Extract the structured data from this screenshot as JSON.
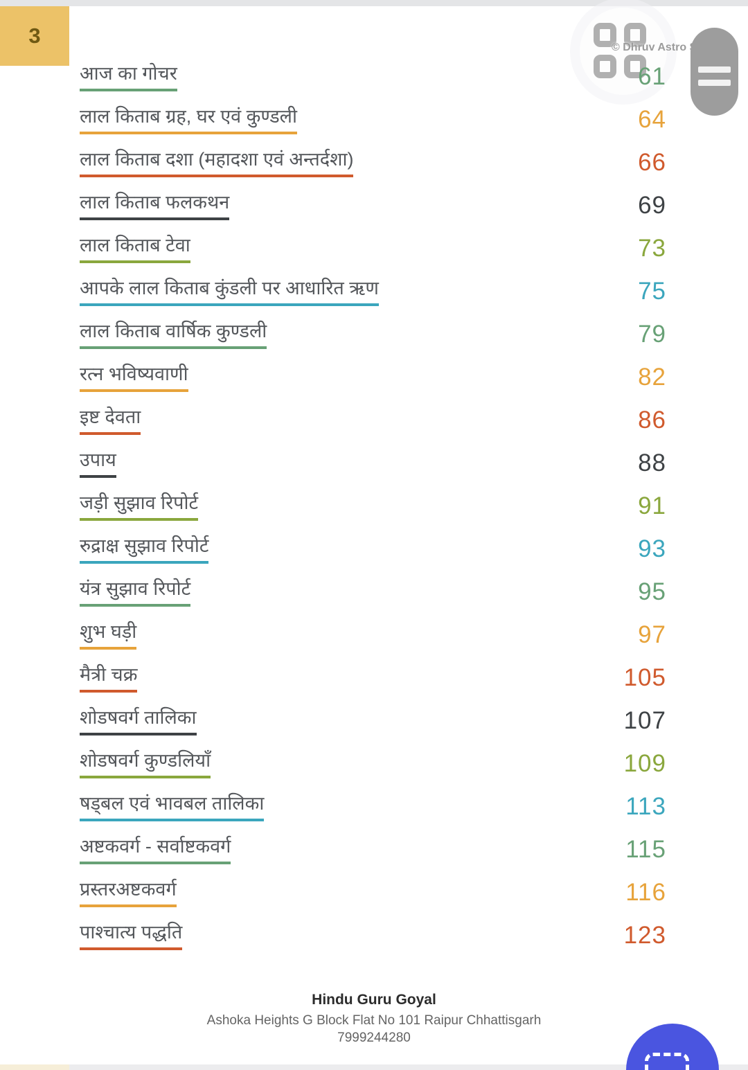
{
  "badge": {
    "number": "3"
  },
  "watermark": {
    "text": "© Dhruv Astro Software",
    "icon": "grid-icon"
  },
  "toc": {
    "items": [
      {
        "label": "आज का गोचर",
        "page": "61",
        "color": "#68a176"
      },
      {
        "label": "लाल किताब ग्रह, घर एवं कुण्डली",
        "page": "64",
        "color": "#e7a33b"
      },
      {
        "label": "लाल किताब दशा (महादशा एवं अन्तर्दशा)",
        "page": "66",
        "color": "#d05a2d"
      },
      {
        "label": "लाल किताब फलकथन",
        "page": "69",
        "color": "#3e4245"
      },
      {
        "label": "लाल किताब टेवा",
        "page": "73",
        "color": "#8aa73d"
      },
      {
        "label": "आपके लाल किताब कुंडली पर आधारित ऋण",
        "page": "75",
        "color": "#3ba6bd"
      },
      {
        "label": "लाल किताब वार्षिक कुण्डली",
        "page": "79",
        "color": "#68a176"
      },
      {
        "label": "रत्न भविष्यवाणी",
        "page": "82",
        "color": "#e7a33b"
      },
      {
        "label": "इष्ट देवता",
        "page": "86",
        "color": "#d05a2d"
      },
      {
        "label": "उपाय",
        "page": "88",
        "color": "#3e4245"
      },
      {
        "label": "जड़ी सुझाव रिपोर्ट",
        "page": "91",
        "color": "#8aa73d"
      },
      {
        "label": "रुद्राक्ष सुझाव रिपोर्ट",
        "page": "93",
        "color": "#3ba6bd"
      },
      {
        "label": "यंत्र सुझाव रिपोर्ट",
        "page": "95",
        "color": "#68a176"
      },
      {
        "label": "शुभ घड़ी",
        "page": "97",
        "color": "#e7a33b"
      },
      {
        "label": "मैत्री चक्र",
        "page": "105",
        "color": "#d05a2d"
      },
      {
        "label": "शोडषवर्ग तालिका",
        "page": "107",
        "color": "#3e4245"
      },
      {
        "label": "शोडषवर्ग कुण्डलियाँ",
        "page": "109",
        "color": "#8aa73d"
      },
      {
        "label": "षड्बल एवं भावबल तालिका",
        "page": "113",
        "color": "#3ba6bd"
      },
      {
        "label": "अष्टकवर्ग - सर्वाष्टकवर्ग",
        "page": "115",
        "color": "#68a176"
      },
      {
        "label": "प्रस्तरअष्टकवर्ग",
        "page": "116",
        "color": "#e7a33b"
      },
      {
        "label": "पाश्चात्य पद्धति",
        "page": "123",
        "color": "#d05a2d"
      }
    ]
  },
  "footer": {
    "name": "Hindu Guru Goyal",
    "address": "Ashoka Heights G Block Flat No 101 Raipur Chhattisgarh",
    "phone": "7999244280"
  },
  "colors": {
    "badge_bg": "#ecc268",
    "badge_text": "#6f5913",
    "sage_green": "#68a176",
    "amber": "#e7a33b",
    "orange_red": "#d05a2d",
    "dark": "#3e4245",
    "olive_green": "#8aa73d",
    "teal": "#3ba6bd",
    "pill_gray": "#9d9d9d",
    "fab_blue": "#4a55e0"
  },
  "icons": {
    "watermark": "grid-icon",
    "menu": "hamburger-icon",
    "fab": "screenshot-icon"
  }
}
